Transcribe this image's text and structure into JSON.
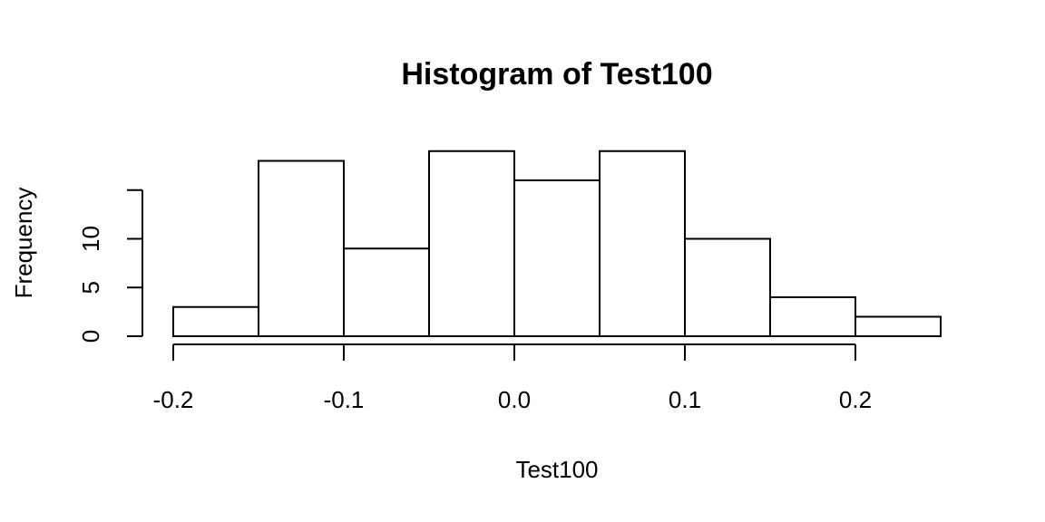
{
  "chart_data": {
    "type": "bar",
    "title": "Histogram of Test100",
    "xlabel": "Test100",
    "ylabel": "Frequency",
    "bins": [
      {
        "from": -0.2,
        "to": -0.15,
        "count": 3
      },
      {
        "from": -0.15,
        "to": -0.1,
        "count": 18
      },
      {
        "from": -0.1,
        "to": -0.05,
        "count": 9
      },
      {
        "from": -0.05,
        "to": 0.0,
        "count": 19
      },
      {
        "from": 0.0,
        "to": 0.05,
        "count": 16
      },
      {
        "from": 0.05,
        "to": 0.1,
        "count": 19
      },
      {
        "from": 0.1,
        "to": 0.15,
        "count": 10
      },
      {
        "from": 0.15,
        "to": 0.2,
        "count": 4
      },
      {
        "from": 0.2,
        "to": 0.25,
        "count": 2
      }
    ],
    "xticks": [
      {
        "value": -0.2,
        "label": "-0.2"
      },
      {
        "value": -0.1,
        "label": "-0.1"
      },
      {
        "value": 0.0,
        "label": "0.0"
      },
      {
        "value": 0.1,
        "label": "0.1"
      },
      {
        "value": 0.2,
        "label": "0.2"
      }
    ],
    "yticks": [
      {
        "value": 0,
        "label": "0"
      },
      {
        "value": 5,
        "label": "5"
      },
      {
        "value": 10,
        "label": "10"
      },
      {
        "value": 15,
        "label": ""
      }
    ],
    "xlim": [
      -0.2,
      0.25
    ],
    "ylim": [
      0,
      19
    ],
    "grid": false,
    "legend": "none"
  }
}
